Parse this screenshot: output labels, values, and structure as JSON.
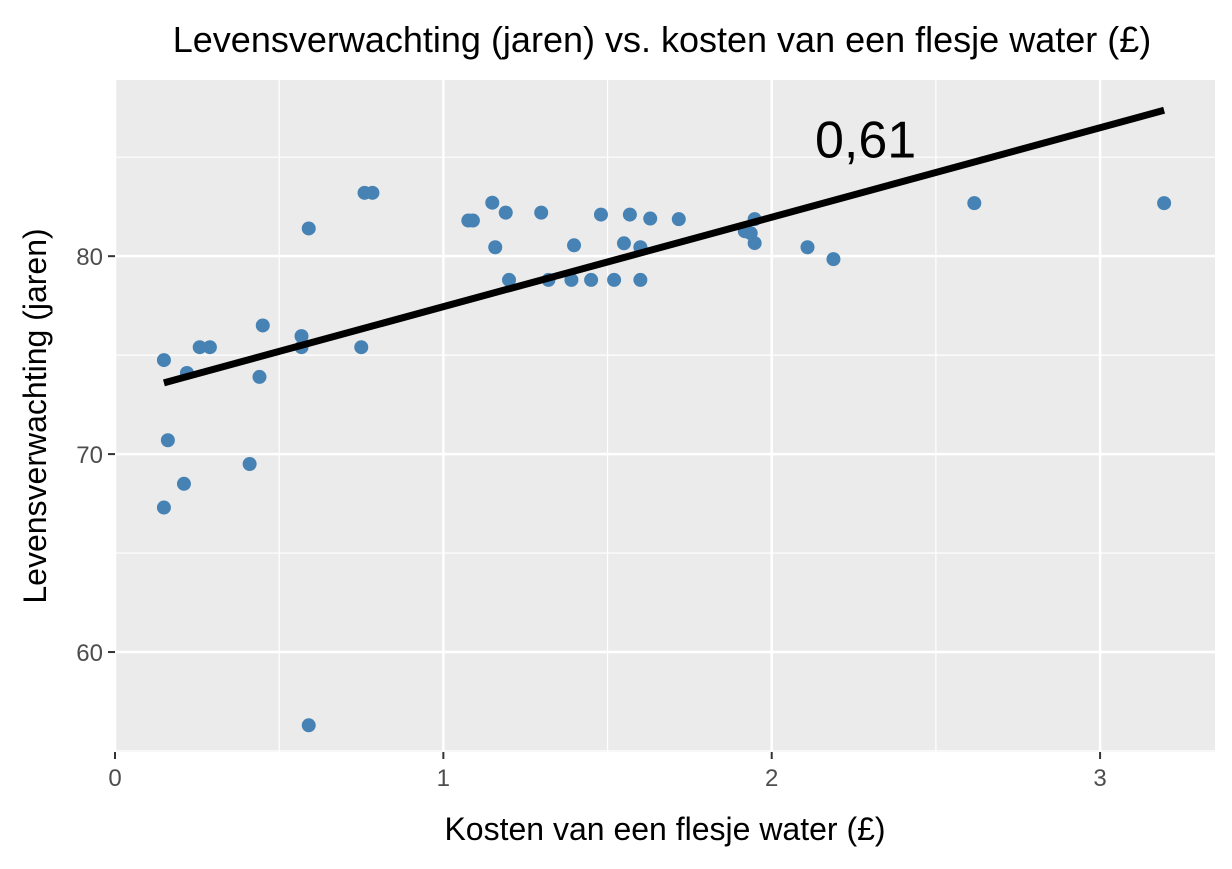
{
  "chart_data": {
    "type": "scatter",
    "title": "Levensverwachting (jaren) vs. kosten van een flesje water (£)",
    "xlabel": "Kosten van een flesje water (£)",
    "ylabel": "Levensverwachting (jaren)",
    "xlim": [
      0,
      3.35
    ],
    "ylim": [
      54.95,
      88.9
    ],
    "xticks": [
      0,
      1,
      2,
      3
    ],
    "xtick_labels": [
      "0",
      "1",
      "2",
      "3"
    ],
    "yticks": [
      60,
      70,
      80
    ],
    "ytick_labels": [
      "60",
      "70",
      "80"
    ],
    "grid": true,
    "point_color": "#4682B4",
    "panel_color": "#EBEBEB",
    "points": [
      [
        0.149,
        74.75
      ],
      [
        0.161,
        70.7
      ],
      [
        0.149,
        67.3
      ],
      [
        0.21,
        68.5
      ],
      [
        0.219,
        74.1
      ],
      [
        0.258,
        75.4
      ],
      [
        0.289,
        75.4
      ],
      [
        0.41,
        69.5
      ],
      [
        0.44,
        73.9
      ],
      [
        0.45,
        76.5
      ],
      [
        0.568,
        75.96
      ],
      [
        0.568,
        75.4
      ],
      [
        0.59,
        81.4
      ],
      [
        0.59,
        56.3
      ],
      [
        0.75,
        75.4
      ],
      [
        0.76,
        83.2
      ],
      [
        0.784,
        83.2
      ],
      [
        1.076,
        81.8
      ],
      [
        1.09,
        81.8
      ],
      [
        1.149,
        82.7
      ],
      [
        1.158,
        80.45
      ],
      [
        1.19,
        82.2
      ],
      [
        1.2,
        78.8
      ],
      [
        1.298,
        82.2
      ],
      [
        1.32,
        78.8
      ],
      [
        1.39,
        78.8
      ],
      [
        1.398,
        80.55
      ],
      [
        1.45,
        78.8
      ],
      [
        1.48,
        82.1
      ],
      [
        1.52,
        78.8
      ],
      [
        1.55,
        80.65
      ],
      [
        1.568,
        82.1
      ],
      [
        1.6,
        80.45
      ],
      [
        1.6,
        78.8
      ],
      [
        1.63,
        81.9
      ],
      [
        1.717,
        81.87
      ],
      [
        1.918,
        81.26
      ],
      [
        1.936,
        81.16
      ],
      [
        1.948,
        81.87
      ],
      [
        1.948,
        80.66
      ],
      [
        2.109,
        80.45
      ],
      [
        2.188,
        79.85
      ],
      [
        2.617,
        82.68
      ],
      [
        3.195,
        82.68
      ]
    ],
    "trend_line": {
      "x": [
        0.149,
        3.195
      ],
      "y": [
        73.6,
        87.37
      ],
      "color": "#000000"
    },
    "annotation": {
      "text": "0,61",
      "x": 2.286,
      "y": 85.9
    }
  }
}
